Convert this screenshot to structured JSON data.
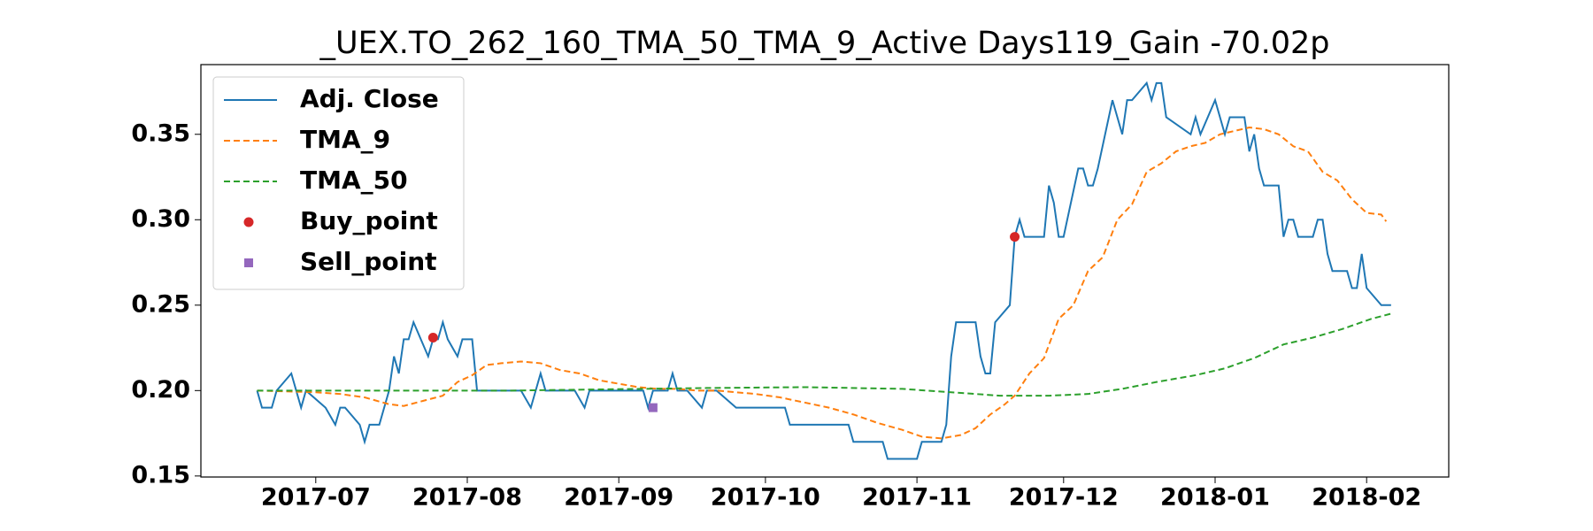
{
  "chart_data": {
    "type": "line",
    "title": "_UEX.TO_262_160_TMA_50_TMA_9_Active Days119_Gain -70.02p",
    "xlim": [
      -23.5,
      231.8
    ],
    "ylim": [
      0.1494,
      0.3908
    ],
    "xticks": [
      {
        "value": 0,
        "label": "2017-07"
      },
      {
        "value": 31,
        "label": "2017-08"
      },
      {
        "value": 62,
        "label": "2017-09"
      },
      {
        "value": 92,
        "label": "2017-10"
      },
      {
        "value": 123,
        "label": "2017-11"
      },
      {
        "value": 153,
        "label": "2017-12"
      },
      {
        "value": 184,
        "label": "2018-01"
      },
      {
        "value": 215,
        "label": "2018-02"
      }
    ],
    "yticks": [
      0.15,
      {
        "value": 0.2,
        "label": "0.20"
      },
      0.25,
      {
        "value": 0.3,
        "label": "0.30"
      },
      0.35
    ],
    "grid": false,
    "legend": "upper left",
    "series": [
      {
        "name": "Adj. Close",
        "color": "#1f77b4",
        "style": "solid",
        "x": [
          -12,
          -11,
          -9,
          -8,
          -5,
          -4,
          -3,
          -2,
          2,
          4,
          5,
          6,
          9,
          10,
          11,
          13,
          15,
          16,
          17,
          18,
          19,
          20,
          23,
          24,
          25,
          26,
          27,
          29,
          30,
          32,
          33,
          42,
          44,
          46,
          47,
          53,
          55,
          56,
          63,
          67,
          68,
          69,
          72,
          73,
          74,
          76,
          79,
          80,
          82,
          86,
          96,
          97,
          109,
          110,
          116,
          117,
          123,
          124,
          128,
          129,
          130,
          131,
          135,
          136,
          137,
          138,
          139,
          142,
          143,
          144,
          145,
          149,
          150,
          151,
          152,
          153,
          156,
          157,
          158,
          159,
          160,
          163,
          165,
          166,
          167,
          170,
          171,
          172,
          173,
          174,
          179,
          180,
          181,
          184,
          186,
          187,
          190,
          191,
          192,
          193,
          194,
          197,
          198,
          199,
          200,
          201,
          204,
          205,
          206,
          207,
          208,
          211,
          212,
          213,
          214,
          215,
          218,
          220
        ],
        "values": [
          0.2,
          0.19,
          0.19,
          0.2,
          0.21,
          0.2,
          0.19,
          0.2,
          0.19,
          0.18,
          0.19,
          0.19,
          0.18,
          0.17,
          0.18,
          0.18,
          0.2,
          0.22,
          0.21,
          0.23,
          0.23,
          0.24,
          0.22,
          0.23,
          0.23,
          0.24,
          0.23,
          0.22,
          0.23,
          0.23,
          0.2,
          0.2,
          0.19,
          0.21,
          0.2,
          0.2,
          0.19,
          0.2,
          0.2,
          0.2,
          0.19,
          0.2,
          0.2,
          0.21,
          0.2,
          0.2,
          0.19,
          0.2,
          0.2,
          0.19,
          0.19,
          0.18,
          0.18,
          0.17,
          0.17,
          0.16,
          0.16,
          0.17,
          0.17,
          0.18,
          0.22,
          0.24,
          0.24,
          0.22,
          0.21,
          0.21,
          0.24,
          0.25,
          0.29,
          0.3,
          0.29,
          0.29,
          0.32,
          0.31,
          0.29,
          0.29,
          0.33,
          0.33,
          0.32,
          0.32,
          0.33,
          0.37,
          0.35,
          0.37,
          0.37,
          0.38,
          0.37,
          0.38,
          0.38,
          0.36,
          0.35,
          0.36,
          0.35,
          0.37,
          0.35,
          0.36,
          0.36,
          0.34,
          0.35,
          0.33,
          0.32,
          0.32,
          0.29,
          0.3,
          0.3,
          0.29,
          0.29,
          0.3,
          0.3,
          0.28,
          0.27,
          0.27,
          0.26,
          0.26,
          0.28,
          0.26,
          0.25,
          0.25
        ]
      },
      {
        "name": "TMA_9",
        "color": "#ff7f0e",
        "style": "dashed",
        "x": [
          -12,
          0,
          5,
          10,
          15,
          18,
          22,
          26,
          29,
          32,
          35,
          38,
          42,
          46,
          50,
          54,
          58,
          62,
          66,
          70,
          74,
          78,
          82,
          86,
          90,
          95,
          100,
          105,
          110,
          115,
          120,
          124,
          128,
          132,
          135,
          138,
          141,
          143,
          146,
          149,
          152,
          155,
          158,
          161,
          164,
          167,
          170,
          173,
          176,
          179,
          182,
          185,
          188,
          191,
          194,
          197,
          200,
          203,
          206,
          209,
          212,
          215,
          218,
          219
        ],
        "values": [
          0.2,
          0.199,
          0.198,
          0.196,
          0.192,
          0.191,
          0.194,
          0.197,
          0.205,
          0.209,
          0.215,
          0.216,
          0.217,
          0.216,
          0.212,
          0.21,
          0.206,
          0.204,
          0.202,
          0.201,
          0.201,
          0.2,
          0.2,
          0.199,
          0.198,
          0.196,
          0.193,
          0.19,
          0.186,
          0.181,
          0.177,
          0.173,
          0.172,
          0.174,
          0.178,
          0.186,
          0.192,
          0.197,
          0.21,
          0.219,
          0.242,
          0.25,
          0.27,
          0.278,
          0.3,
          0.309,
          0.328,
          0.333,
          0.34,
          0.343,
          0.345,
          0.35,
          0.352,
          0.354,
          0.353,
          0.35,
          0.343,
          0.34,
          0.328,
          0.323,
          0.312,
          0.304,
          0.303,
          0.299
        ]
      },
      {
        "name": "TMA_50",
        "color": "#2ca02c",
        "style": "dashed",
        "x": [
          -12,
          40,
          80,
          100,
          120,
          130,
          140,
          150,
          158,
          165,
          172,
          180,
          186,
          192,
          198,
          204,
          210,
          216,
          220
        ],
        "values": [
          0.2,
          0.2,
          0.2015,
          0.202,
          0.201,
          0.199,
          0.197,
          0.197,
          0.198,
          0.201,
          0.205,
          0.209,
          0.213,
          0.219,
          0.227,
          0.231,
          0.236,
          0.242,
          0.245
        ]
      },
      {
        "name": "Buy_point",
        "color": "#d62728",
        "marker": "circle",
        "x": [
          24,
          143
        ],
        "values": [
          0.231,
          0.29
        ]
      },
      {
        "name": "Sell_point",
        "color": "#9467bd",
        "marker": "square",
        "x": [
          69
        ],
        "values": [
          0.19
        ]
      }
    ]
  }
}
